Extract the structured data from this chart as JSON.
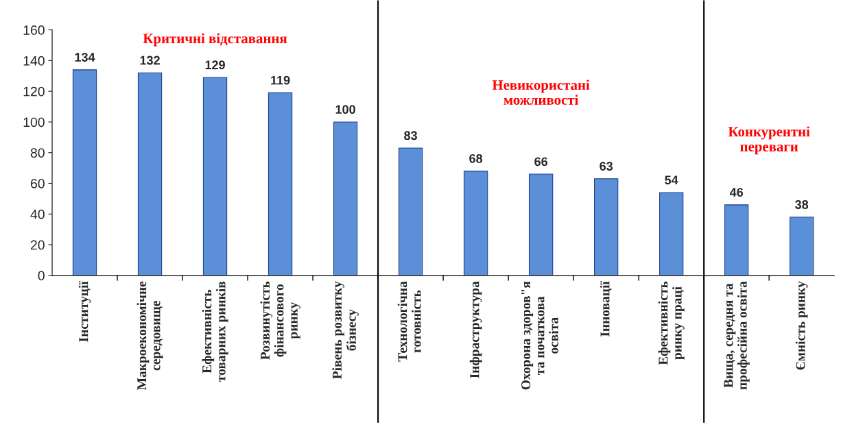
{
  "chart_data": {
    "type": "bar",
    "categories": [
      "Інституції",
      "Макроекономічне\nсередовище",
      "Ефективність\nтоварних ринків",
      "Розвинутість\nфінансового\nринку",
      "Рівень розвитку\nбізнесу",
      "Технологічна\nготовність",
      "Інфраструктура",
      "Охорона здоров\"я\nта початкова\nосвіта",
      "Інновації",
      "Ефективність\nринку праці",
      "Вища, середня та\nпрофесійна освіта",
      "Ємність ринку"
    ],
    "values": [
      134,
      132,
      129,
      119,
      100,
      83,
      68,
      66,
      63,
      54,
      46,
      38
    ],
    "color": "#5b8fd8",
    "ylim": [
      0,
      160
    ],
    "yticks": [
      0,
      20,
      40,
      60,
      80,
      100,
      120,
      140,
      160
    ],
    "data_labels": true,
    "annotations": [
      "Критичні відставання",
      "Невикористані\nможливості",
      "Конкурентні\nпереваги"
    ]
  }
}
